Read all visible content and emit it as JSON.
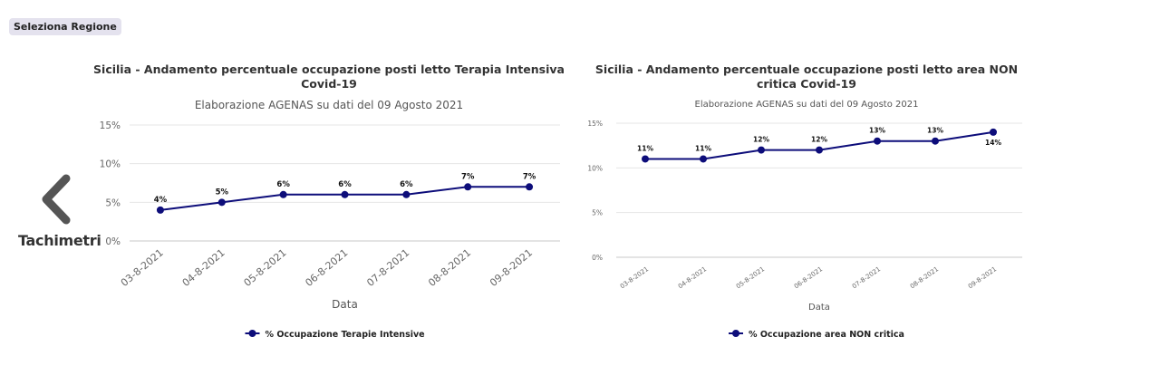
{
  "header": {
    "region_button": "Seleziona Regione"
  },
  "nav": {
    "back_label": "Tachimetri",
    "back_icon": "chevron-left-icon"
  },
  "colors": {
    "series": "#0d0d7a",
    "grid": "#e6e6e6"
  },
  "chart_data": [
    {
      "type": "line",
      "title_lines": [
        "Sicilia - Andamento percentuale occupazione posti letto Terapia Intensiva",
        "Covid-19"
      ],
      "subtitle": "Elaborazione AGENAS su dati del 09 Agosto 2021",
      "xlabel": "Data",
      "ylabel": "",
      "categories": [
        "03-8-2021",
        "04-8-2021",
        "05-8-2021",
        "06-8-2021",
        "07-8-2021",
        "08-8-2021",
        "09-8-2021"
      ],
      "series": [
        {
          "name": "% Occupazione Terapie Intensive",
          "values": [
            4,
            5,
            6,
            6,
            6,
            7,
            7
          ],
          "labels": [
            "4%",
            "5%",
            "6%",
            "6%",
            "6%",
            "7%",
            "7%"
          ]
        }
      ],
      "ylim": [
        0,
        15
      ],
      "yticks": [
        0,
        5,
        10,
        15
      ],
      "ytick_labels": [
        "0%",
        "5%",
        "10%",
        "15%"
      ],
      "grid": true,
      "legend": "bottom-center"
    },
    {
      "type": "line",
      "title_lines": [
        "Sicilia - Andamento percentuale occupazione posti letto area NON",
        "critica Covid-19"
      ],
      "subtitle": "Elaborazione AGENAS su dati del 09 Agosto 2021",
      "xlabel": "Data",
      "ylabel": "",
      "categories": [
        "03-8-2021",
        "04-8-2021",
        "05-8-2021",
        "06-8-2021",
        "07-8-2021",
        "08-8-2021",
        "09-8-2021"
      ],
      "series": [
        {
          "name": "% Occupazione area NON critica",
          "values": [
            11,
            11,
            12,
            12,
            13,
            13,
            14
          ],
          "labels": [
            "11%",
            "11%",
            "12%",
            "12%",
            "13%",
            "13%",
            "14%"
          ]
        }
      ],
      "ylim": [
        0,
        15
      ],
      "yticks": [
        0,
        5,
        10,
        15
      ],
      "ytick_labels": [
        "0%",
        "5%",
        "10%",
        "15%"
      ],
      "grid": true,
      "legend": "bottom-center"
    }
  ]
}
